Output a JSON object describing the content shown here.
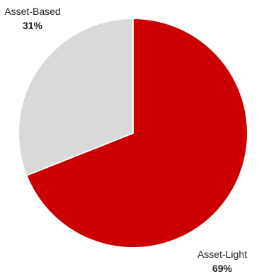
{
  "chart_data": {
    "type": "pie",
    "slices": [
      {
        "label": "Asset-Light",
        "value": 69,
        "value_label": "69%",
        "color": "#cc0000"
      },
      {
        "label": "Asset-Based",
        "value": 31,
        "value_label": "31%",
        "color": "#d9d9d9"
      }
    ],
    "legend": "none",
    "labels_position": "outside"
  }
}
